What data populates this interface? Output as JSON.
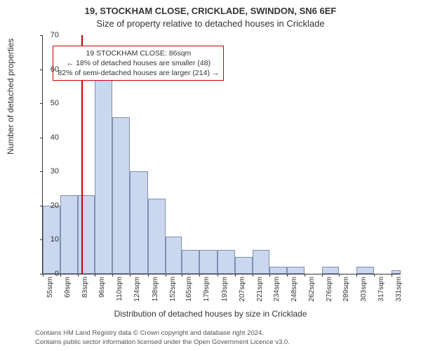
{
  "title_line1": "19, STOCKHAM CLOSE, CRICKLADE, SWINDON, SN6 6EF",
  "title_line2": "Size of property relative to detached houses in Cricklade",
  "ylabel": "Number of detached properties",
  "xlabel": "Distribution of detached houses by size in Cricklade",
  "footer_line1": "Contains HM Land Registry data © Crown copyright and database right 2024.",
  "footer_line2": "Contains public sector information licensed under the Open Government Licence v3.0.",
  "chart": {
    "type": "histogram",
    "ylim": [
      0,
      70
    ],
    "ytick_step": 10,
    "yticks": [
      0,
      10,
      20,
      30,
      40,
      50,
      60,
      70
    ],
    "xlim": [
      55,
      338
    ],
    "xticks": [
      55,
      69,
      83,
      96,
      110,
      124,
      138,
      152,
      165,
      179,
      193,
      207,
      221,
      234,
      248,
      262,
      276,
      289,
      303,
      317,
      331
    ],
    "xtick_unit": "sqm",
    "bars": [
      {
        "x": 55,
        "w": 14,
        "y": 20
      },
      {
        "x": 69,
        "w": 14,
        "y": 23
      },
      {
        "x": 83,
        "w": 13,
        "y": 23
      },
      {
        "x": 96,
        "w": 14,
        "y": 57
      },
      {
        "x": 110,
        "w": 14,
        "y": 46
      },
      {
        "x": 124,
        "w": 14,
        "y": 30
      },
      {
        "x": 138,
        "w": 14,
        "y": 22
      },
      {
        "x": 152,
        "w": 13,
        "y": 11
      },
      {
        "x": 165,
        "w": 14,
        "y": 7
      },
      {
        "x": 179,
        "w": 14,
        "y": 7
      },
      {
        "x": 193,
        "w": 14,
        "y": 7
      },
      {
        "x": 207,
        "w": 14,
        "y": 5
      },
      {
        "x": 221,
        "w": 13,
        "y": 7
      },
      {
        "x": 234,
        "w": 14,
        "y": 2
      },
      {
        "x": 248,
        "w": 14,
        "y": 2
      },
      {
        "x": 262,
        "w": 14,
        "y": 0
      },
      {
        "x": 276,
        "w": 13,
        "y": 2
      },
      {
        "x": 289,
        "w": 14,
        "y": 0
      },
      {
        "x": 303,
        "w": 14,
        "y": 2
      },
      {
        "x": 317,
        "w": 14,
        "y": 0
      },
      {
        "x": 331,
        "w": 7,
        "y": 1
      }
    ],
    "bar_fill": "#cad7ef",
    "bar_border": "#7f8faf",
    "marker": {
      "x": 86,
      "color": "#cc0000"
    },
    "annotation": {
      "line1": "19 STOCKHAM CLOSE: 86sqm",
      "line2": "← 18% of detached houses are smaller (48)",
      "line3": "82% of semi-detached houses are larger (214) →",
      "border_color": "#cc0000",
      "left_sqm": 63,
      "top_y": 67
    },
    "background_color": "#ffffff"
  }
}
